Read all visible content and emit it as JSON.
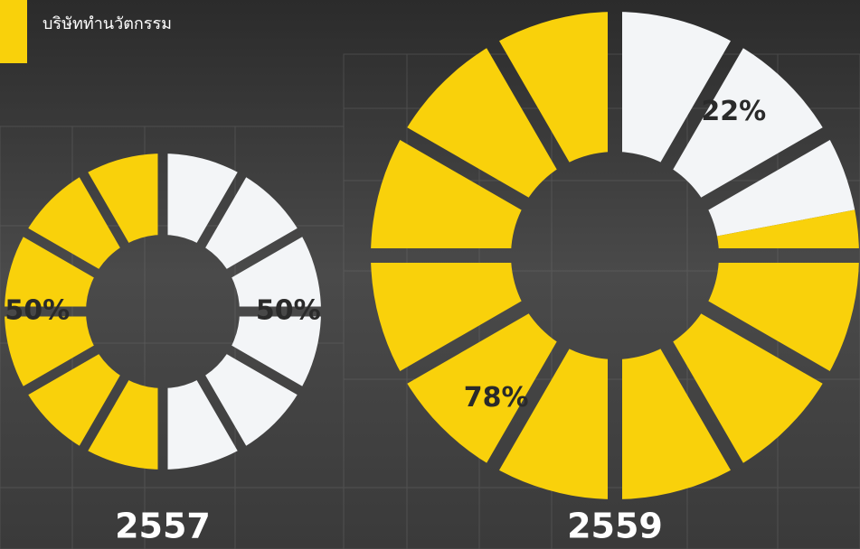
{
  "header": {
    "title": "บริษัททำนวัตกรรม"
  },
  "chart_data": [
    {
      "type": "donut",
      "title": "2557",
      "values": [
        50,
        50
      ],
      "value_labels": [
        "50%",
        "50%"
      ],
      "colors": [
        "#f3f5f7",
        "#f9d10b"
      ]
    },
    {
      "type": "donut",
      "title": "2559",
      "values": [
        22,
        78
      ],
      "value_labels": [
        "22%",
        "78%"
      ],
      "colors": [
        "#f3f5f7",
        "#f9d10b"
      ]
    }
  ]
}
